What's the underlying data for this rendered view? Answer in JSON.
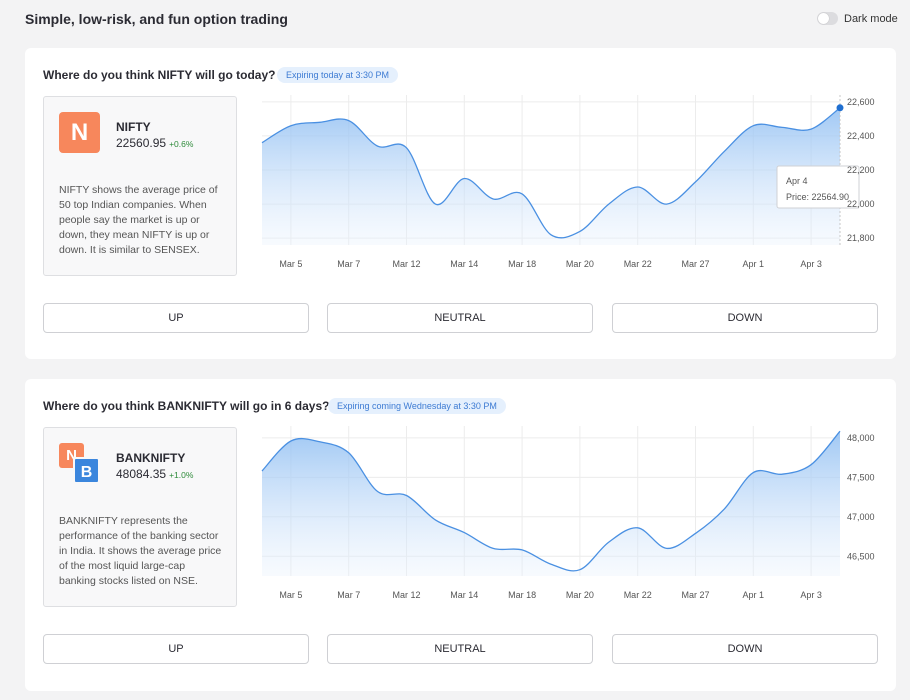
{
  "header": {
    "title": "Simple, low-risk, and fun option trading",
    "dark_mode_label": "Dark mode"
  },
  "colors": {
    "accent_line": "#4a90e2",
    "accent_badge_bg": "#e5f0fd",
    "positive": "#2e8b3a",
    "nifty_logo": "#f7875c",
    "bank_logo": "#3b86dd"
  },
  "cards": [
    {
      "question": "Where do you think NIFTY will go today?",
      "expiry": "Expiring today at 3:30 PM",
      "index_name": "NIFTY",
      "price": "22560.95",
      "change": "+0.6%",
      "logo_letter": "N",
      "description": "NIFTY shows the average price of 50 top Indian companies. When people say the market is up or down, they mean NIFTY is up or down. It is similar to SENSEX.",
      "buttons": {
        "up": "UP",
        "neutral": "NEUTRAL",
        "down": "DOWN"
      },
      "tooltip": {
        "date": "Apr 4",
        "price_text": "Price: 22564.90"
      }
    },
    {
      "question": "Where do you think BANKNIFTY will go in 6 days?",
      "expiry": "Expiring coming Wednesday at 3:30 PM",
      "index_name": "BANKNIFTY",
      "price": "48084.35",
      "change": "+1.0%",
      "logo_letter_1": "N",
      "logo_letter_2": "B",
      "description": "BANKNIFTY represents the performance of the banking sector in India. It shows the average price of the most liquid large-cap banking stocks listed on NSE.",
      "buttons": {
        "up": "UP",
        "neutral": "NEUTRAL",
        "down": "DOWN"
      }
    }
  ],
  "chart_data": [
    {
      "type": "area",
      "title": "",
      "xlabel": "",
      "ylabel": "",
      "x_ticks": [
        "Mar 5",
        "Mar 7",
        "Mar 12",
        "Mar 14",
        "Mar 18",
        "Mar 20",
        "Mar 22",
        "Mar 27",
        "Apr 1",
        "Apr 3"
      ],
      "y_ticks": [
        "21,800",
        "22,000",
        "22,200",
        "22,400",
        "22,600"
      ],
      "ylim": [
        21760,
        22640
      ],
      "grid": true,
      "series": [
        {
          "x": [
            "Mar 4",
            "Mar 5",
            "Mar 6",
            "Mar 7",
            "Mar 11",
            "Mar 12",
            "Mar 13",
            "Mar 14",
            "Mar 15",
            "Mar 18",
            "Mar 19",
            "Mar 20",
            "Mar 21",
            "Mar 22",
            "Mar 26",
            "Mar 27",
            "Mar 28",
            "Apr 1",
            "Apr 2",
            "Apr 3",
            "Apr 4"
          ],
          "values": [
            22360,
            22460,
            22480,
            22490,
            22340,
            22330,
            22000,
            22150,
            22030,
            22060,
            21820,
            21840,
            22000,
            22100,
            22000,
            22130,
            22310,
            22460,
            22450,
            22440,
            22565
          ]
        }
      ],
      "highlight": {
        "x": "Apr 4",
        "y": 22564.9
      }
    },
    {
      "type": "area",
      "title": "",
      "xlabel": "",
      "ylabel": "",
      "x_ticks": [
        "Mar 5",
        "Mar 7",
        "Mar 12",
        "Mar 14",
        "Mar 18",
        "Mar 20",
        "Mar 22",
        "Mar 27",
        "Apr 1",
        "Apr 3"
      ],
      "y_ticks": [
        "46,500",
        "47,000",
        "47,500",
        "48,000"
      ],
      "ylim": [
        46250,
        48150
      ],
      "grid": true,
      "series": [
        {
          "x": [
            "Mar 4",
            "Mar 5",
            "Mar 6",
            "Mar 7",
            "Mar 11",
            "Mar 12",
            "Mar 13",
            "Mar 14",
            "Mar 15",
            "Mar 18",
            "Mar 19",
            "Mar 20",
            "Mar 21",
            "Mar 22",
            "Mar 26",
            "Mar 27",
            "Mar 28",
            "Apr 1",
            "Apr 2",
            "Apr 3",
            "Apr 4"
          ],
          "values": [
            47580,
            47960,
            47950,
            47810,
            47320,
            47270,
            46960,
            46800,
            46600,
            46580,
            46400,
            46330,
            46680,
            46860,
            46600,
            46790,
            47100,
            47560,
            47540,
            47660,
            48084
          ]
        }
      ]
    }
  ]
}
